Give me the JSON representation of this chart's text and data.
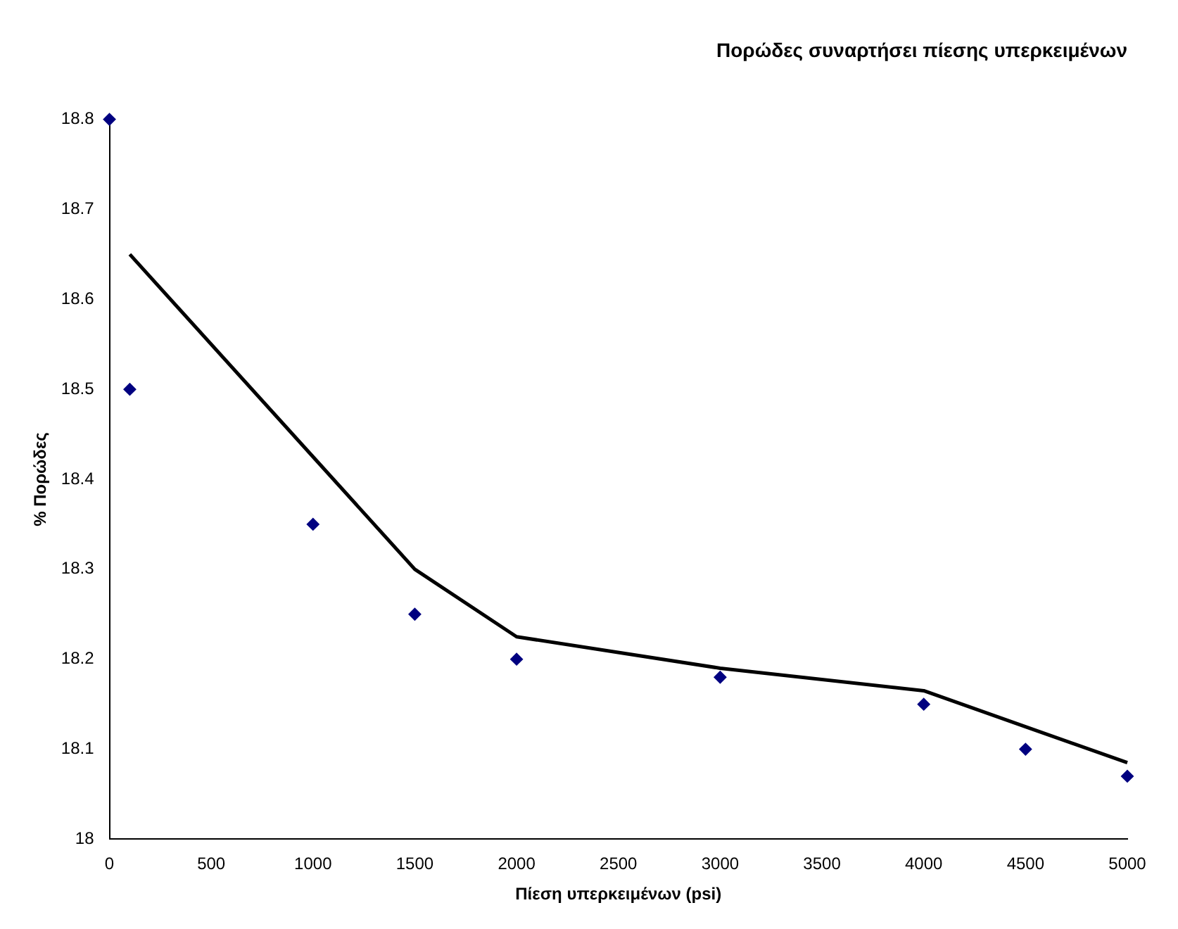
{
  "chart_data": {
    "type": "scatter",
    "title": "Πορώδες συναρτήσει πίεσης υπερκειμένων",
    "xlabel": "Πίεση υπερκειμένων (psi)",
    "ylabel": "% Πορώδες",
    "xlim": [
      0,
      5000
    ],
    "xticks": [
      0,
      500,
      1000,
      1500,
      2000,
      2500,
      3000,
      3500,
      4000,
      4500,
      5000
    ],
    "ylim": [
      18,
      18.8
    ],
    "yticks": [
      18,
      18.1,
      18.2,
      18.3,
      18.4,
      18.5,
      18.6,
      18.7,
      18.8
    ],
    "grid": false,
    "legend": false,
    "marker": "diamond",
    "series": [
      {
        "type": "scatter",
        "color": "#000080",
        "x": [
          0,
          100,
          1000,
          1500,
          2000,
          3000,
          4000,
          4500,
          5000
        ],
        "values": [
          18.8,
          18.5,
          18.35,
          18.25,
          18.2,
          18.18,
          18.15,
          18.1,
          18.07
        ]
      },
      {
        "type": "line",
        "color": "#000000",
        "marker": "none",
        "line_style": "solid",
        "x": [
          100,
          1000,
          1500,
          2000,
          3000,
          4000,
          4500,
          5000
        ],
        "values": [
          18.65,
          18.425,
          18.3,
          18.225,
          18.19,
          18.165,
          18.125,
          18.085
        ]
      }
    ]
  }
}
